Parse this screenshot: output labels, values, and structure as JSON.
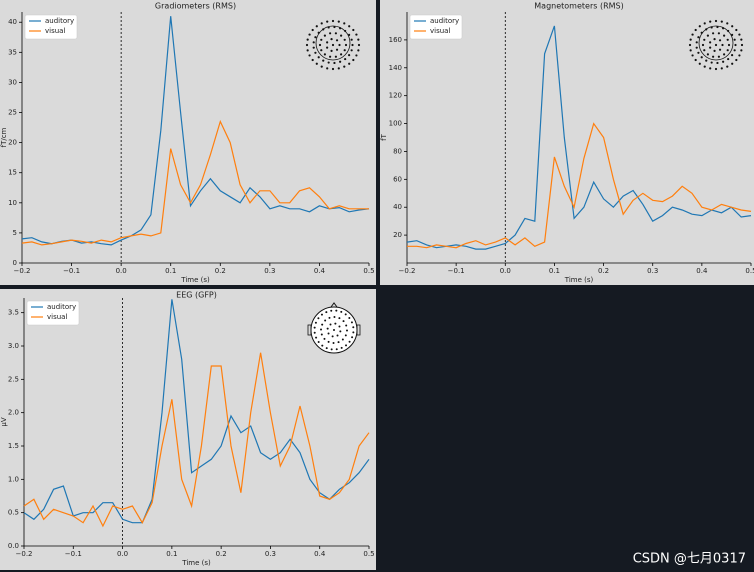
{
  "chart_data": [
    {
      "type": "line",
      "title": "Gradiometers (RMS)",
      "x_label": "Time (s)",
      "y_label": "fT/cm",
      "x": [
        -0.2,
        -0.18,
        -0.16,
        -0.14,
        -0.12,
        -0.1,
        -0.08,
        -0.06,
        -0.04,
        -0.02,
        0,
        0.02,
        0.04,
        0.06,
        0.08,
        0.1,
        0.12,
        0.14,
        0.16,
        0.18,
        0.2,
        0.22,
        0.24,
        0.26,
        0.28,
        0.3,
        0.32,
        0.34,
        0.36,
        0.38,
        0.4,
        0.42,
        0.44,
        0.46,
        0.48,
        0.5
      ],
      "series": [
        {
          "name": "auditory",
          "color": "#1f77b4",
          "values": [
            4,
            4.2,
            3.5,
            3.2,
            3.6,
            3.8,
            3.3,
            3.5,
            3.2,
            3,
            3.8,
            4.5,
            5.5,
            8,
            22,
            41,
            25,
            9.5,
            12,
            14,
            12,
            11,
            10,
            12.5,
            11,
            9,
            9.5,
            9,
            9,
            8.5,
            9.5,
            9,
            9.2,
            8.5,
            8.8,
            9
          ]
        },
        {
          "name": "visual",
          "color": "#ff7f0e",
          "values": [
            3.3,
            3.5,
            3,
            3.2,
            3.5,
            3.8,
            3.6,
            3.3,
            3.8,
            3.5,
            4.2,
            4.5,
            4.8,
            4.5,
            5,
            19,
            13,
            10,
            13,
            18,
            23.5,
            20,
            13,
            10,
            12,
            12,
            10,
            10,
            12,
            12.5,
            11,
            9,
            9.5,
            9,
            9,
            9
          ]
        }
      ],
      "xlim": [
        -0.2,
        0.5
      ],
      "xticks": [
        {
          "value": -0.2,
          "label": "−0.2"
        },
        {
          "value": -0.1,
          "label": "−0.1"
        },
        {
          "value": 0,
          "label": "0.0"
        },
        0.1,
        0.2,
        0.3,
        0.4,
        0.5
      ],
      "ylim": [
        0,
        41.7
      ],
      "yticks": [
        0,
        5,
        10,
        15,
        20,
        25,
        30,
        35,
        40
      ],
      "legend": "upper left"
    },
    {
      "type": "line",
      "title": "Magnetometers (RMS)",
      "x_label": "Time (s)",
      "y_label": "fT",
      "x": [
        -0.2,
        -0.18,
        -0.16,
        -0.14,
        -0.12,
        -0.1,
        -0.08,
        -0.06,
        -0.04,
        -0.02,
        0,
        0.02,
        0.04,
        0.06,
        0.08,
        0.1,
        0.12,
        0.14,
        0.16,
        0.18,
        0.2,
        0.22,
        0.24,
        0.26,
        0.28,
        0.3,
        0.32,
        0.34,
        0.36,
        0.38,
        0.4,
        0.42,
        0.44,
        0.46,
        0.48,
        0.5
      ],
      "series": [
        {
          "name": "auditory",
          "color": "#1f77b4",
          "values": [
            15,
            16,
            13,
            11,
            12,
            13,
            12,
            10,
            10,
            12,
            14,
            20,
            32,
            30,
            150,
            170,
            90,
            32,
            40,
            58,
            46,
            40,
            48,
            52,
            42,
            30,
            34,
            40,
            38,
            35,
            34,
            38,
            36,
            40,
            33,
            34
          ]
        },
        {
          "name": "visual",
          "color": "#ff7f0e",
          "values": [
            12,
            12,
            11,
            13,
            12,
            11,
            14,
            16,
            13,
            15,
            18,
            13,
            18,
            12,
            15,
            76,
            55,
            40,
            75,
            100,
            90,
            60,
            35,
            45,
            50,
            45,
            44,
            48,
            55,
            50,
            40,
            38,
            42,
            40,
            38,
            37
          ]
        }
      ],
      "xlim": [
        -0.2,
        0.5
      ],
      "xticks": [
        {
          "value": -0.2,
          "label": "−0.2"
        },
        {
          "value": -0.1,
          "label": "−0.1"
        },
        {
          "value": 0,
          "label": "0.0"
        },
        0.1,
        0.2,
        0.3,
        0.4,
        0.5
      ],
      "ylim": [
        0,
        180
      ],
      "yticks": [
        20,
        40,
        60,
        80,
        100,
        120,
        140,
        160
      ],
      "legend": "upper left"
    },
    {
      "type": "line",
      "title": "EEG (GFP)",
      "x_label": "Time (s)",
      "y_label": "µV",
      "x": [
        -0.2,
        -0.18,
        -0.16,
        -0.14,
        -0.12,
        -0.1,
        -0.08,
        -0.06,
        -0.04,
        -0.02,
        0,
        0.02,
        0.04,
        0.06,
        0.08,
        0.1,
        0.12,
        0.14,
        0.16,
        0.18,
        0.2,
        0.22,
        0.24,
        0.26,
        0.28,
        0.3,
        0.32,
        0.34,
        0.36,
        0.38,
        0.4,
        0.42,
        0.44,
        0.46,
        0.48,
        0.5
      ],
      "series": [
        {
          "name": "auditory",
          "color": "#1f77b4",
          "values": [
            0.5,
            0.4,
            0.55,
            0.85,
            0.9,
            0.45,
            0.5,
            0.5,
            0.65,
            0.65,
            0.4,
            0.35,
            0.35,
            0.7,
            2.0,
            3.7,
            2.8,
            1.1,
            1.2,
            1.3,
            1.5,
            1.95,
            1.7,
            1.8,
            1.4,
            1.3,
            1.4,
            1.6,
            1.4,
            1.0,
            0.8,
            0.7,
            0.85,
            0.95,
            1.1,
            1.3
          ]
        },
        {
          "name": "visual",
          "color": "#ff7f0e",
          "values": [
            0.6,
            0.7,
            0.4,
            0.55,
            0.5,
            0.45,
            0.35,
            0.6,
            0.3,
            0.6,
            0.55,
            0.6,
            0.35,
            0.65,
            1.5,
            2.2,
            1.0,
            0.6,
            1.5,
            2.7,
            2.7,
            1.5,
            0.8,
            2.0,
            2.9,
            2.0,
            1.2,
            1.5,
            2.1,
            1.5,
            0.75,
            0.7,
            0.8,
            1.0,
            1.5,
            1.7
          ]
        }
      ],
      "xlim": [
        -0.2,
        0.5
      ],
      "xticks": [
        {
          "value": -0.2,
          "label": "−0.2"
        },
        {
          "value": -0.1,
          "label": "−0.1"
        },
        {
          "value": 0,
          "label": "0.0"
        },
        0.1,
        0.2,
        0.3,
        0.4,
        0.5
      ],
      "ylim": [
        0,
        3.72
      ],
      "yticks": [
        {
          "value": 0,
          "label": "0.0"
        },
        0.5,
        {
          "value": 1,
          "label": "1.0"
        },
        1.5,
        {
          "value": 2,
          "label": "2.0"
        },
        2.5,
        {
          "value": 3,
          "label": "3.0"
        },
        3.5
      ],
      "legend": "upper left"
    }
  ],
  "watermark": "CSDN @七月0317"
}
